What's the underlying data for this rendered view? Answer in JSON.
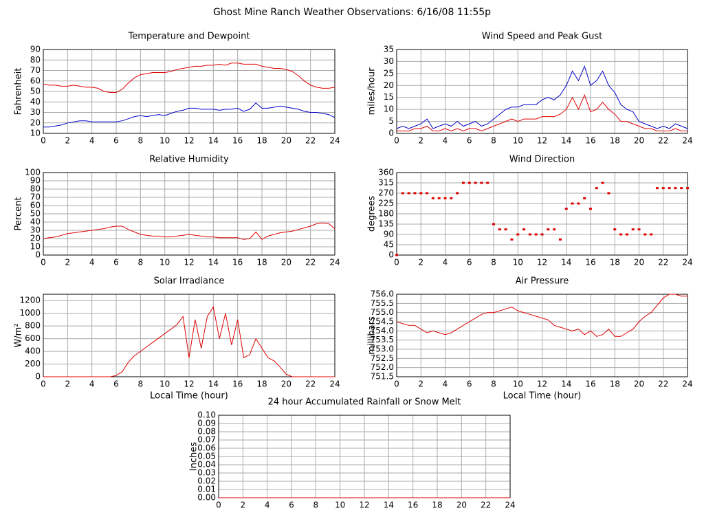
{
  "title": "Ghost Mine Ranch Weather Observations: 6/16/08 11:55p",
  "chart_data": [
    {
      "type": "line",
      "title": "Temperature and Dewpoint",
      "ylabel": "Fahrenheit",
      "grid": true,
      "xlim": [
        0,
        24
      ],
      "xticks": [
        0,
        2,
        4,
        6,
        8,
        10,
        12,
        14,
        16,
        18,
        20,
        22,
        24
      ],
      "ylim": [
        10,
        90
      ],
      "yticks": [
        10,
        20,
        30,
        40,
        50,
        60,
        70,
        80,
        90
      ],
      "x": [
        0,
        0.5,
        1,
        1.5,
        2,
        2.5,
        3,
        3.5,
        4,
        4.5,
        5,
        5.5,
        6,
        6.5,
        7,
        7.5,
        8,
        8.5,
        9,
        9.5,
        10,
        10.5,
        11,
        11.5,
        12,
        12.5,
        13,
        13.5,
        14,
        14.5,
        15,
        15.5,
        16,
        16.5,
        17,
        17.5,
        18,
        18.5,
        19,
        19.5,
        20,
        20.5,
        21,
        21.5,
        22,
        22.5,
        23,
        23.5,
        24
      ],
      "series": [
        {
          "color": "#e00000",
          "values": [
            57,
            56,
            56,
            55,
            55,
            56,
            55,
            54,
            54,
            53,
            50,
            49,
            49,
            52,
            58,
            63,
            66,
            67,
            68,
            68,
            68,
            69,
            71,
            72,
            73,
            74,
            74,
            75,
            75,
            76,
            75,
            77,
            77,
            76,
            76,
            76,
            74,
            73,
            72,
            72,
            71,
            69,
            65,
            60,
            56,
            54,
            53,
            53,
            54
          ]
        },
        {
          "color": "#0000cc",
          "values": [
            16,
            16,
            17,
            18,
            20,
            21,
            22,
            22,
            21,
            21,
            21,
            21,
            21,
            22,
            24,
            26,
            27,
            26,
            27,
            28,
            27,
            29,
            31,
            32,
            34,
            34,
            33,
            33,
            33,
            32,
            33,
            33,
            34,
            31,
            33,
            39,
            34,
            34,
            35,
            36,
            35,
            34,
            33,
            31,
            30,
            30,
            29,
            28,
            25
          ]
        }
      ]
    },
    {
      "type": "line",
      "title": "Wind Speed and Peak Gust",
      "ylabel": "miles/hour",
      "grid": true,
      "xlim": [
        0,
        24
      ],
      "xticks": [
        0,
        2,
        4,
        6,
        8,
        10,
        12,
        14,
        16,
        18,
        20,
        22,
        24
      ],
      "ylim": [
        0,
        35
      ],
      "yticks": [
        0,
        5,
        10,
        15,
        20,
        25,
        30,
        35
      ],
      "x": [
        0,
        0.5,
        1,
        1.5,
        2,
        2.5,
        3,
        3.5,
        4,
        4.5,
        5,
        5.5,
        6,
        6.5,
        7,
        7.5,
        8,
        8.5,
        9,
        9.5,
        10,
        10.5,
        11,
        11.5,
        12,
        12.5,
        13,
        13.5,
        14,
        14.5,
        15,
        15.5,
        16,
        16.5,
        17,
        17.5,
        18,
        18.5,
        19,
        19.5,
        20,
        20.5,
        21,
        21.5,
        22,
        22.5,
        23,
        23.5,
        24
      ],
      "series": [
        {
          "color": "#0000cc",
          "values": [
            2,
            3,
            2,
            3,
            4,
            6,
            2,
            3,
            4,
            3,
            5,
            3,
            4,
            5,
            3,
            4,
            6,
            8,
            10,
            11,
            11,
            12,
            12,
            12,
            14,
            15,
            14,
            16,
            20,
            26,
            22,
            28,
            20,
            22,
            26,
            20,
            17,
            12,
            10,
            9,
            5,
            4,
            3,
            2,
            3,
            2,
            4,
            3,
            2
          ]
        },
        {
          "color": "#e00000",
          "values": [
            1,
            1,
            1,
            2,
            2,
            3,
            1,
            1,
            2,
            1,
            2,
            1,
            2,
            2,
            1,
            2,
            3,
            4,
            5,
            6,
            5,
            6,
            6,
            6,
            7,
            7,
            7,
            8,
            10,
            15,
            10,
            16,
            9,
            10,
            13,
            10,
            8,
            5,
            5,
            4,
            3,
            2,
            2,
            1,
            1,
            1,
            2,
            1,
            1
          ]
        }
      ]
    },
    {
      "type": "line",
      "title": "Relative Humidity",
      "ylabel": "Percent",
      "grid": true,
      "xlim": [
        0,
        24
      ],
      "xticks": [
        0,
        2,
        4,
        6,
        8,
        10,
        12,
        14,
        16,
        18,
        20,
        22,
        24
      ],
      "ylim": [
        0,
        100
      ],
      "yticks": [
        0,
        10,
        20,
        30,
        40,
        50,
        60,
        70,
        80,
        90,
        100
      ],
      "x": [
        0,
        0.5,
        1,
        1.5,
        2,
        2.5,
        3,
        3.5,
        4,
        4.5,
        5,
        5.5,
        6,
        6.5,
        7,
        7.5,
        8,
        8.5,
        9,
        9.5,
        10,
        10.5,
        11,
        11.5,
        12,
        12.5,
        13,
        13.5,
        14,
        14.5,
        15,
        15.5,
        16,
        16.5,
        17,
        17.5,
        18,
        18.5,
        19,
        19.5,
        20,
        20.5,
        21,
        21.5,
        22,
        22.5,
        23,
        23.5,
        24
      ],
      "series": [
        {
          "color": "#e00000",
          "values": [
            20,
            21,
            22,
            24,
            26,
            27,
            28,
            29,
            30,
            31,
            32,
            34,
            35,
            35,
            31,
            28,
            25,
            24,
            23,
            23,
            22,
            22,
            23,
            24,
            25,
            24,
            23,
            22,
            22,
            21,
            21,
            21,
            21,
            19,
            20,
            28,
            19,
            23,
            25,
            27,
            28,
            29,
            31,
            33,
            35,
            38,
            39,
            38,
            32
          ]
        }
      ]
    },
    {
      "type": "scatter",
      "title": "Wind Direction",
      "ylabel": "degrees",
      "grid": true,
      "xlim": [
        0,
        24
      ],
      "xticks": [
        0,
        2,
        4,
        6,
        8,
        10,
        12,
        14,
        16,
        18,
        20,
        22,
        24
      ],
      "ylim": [
        0,
        360
      ],
      "yticks": [
        0,
        45,
        90,
        135,
        180,
        225,
        270,
        315,
        360
      ],
      "x": [
        0,
        0.5,
        1,
        1.5,
        2,
        2.5,
        3,
        3.5,
        4,
        4.5,
        5,
        5.5,
        6,
        6.5,
        7,
        7.5,
        8,
        8.5,
        9,
        9.5,
        10,
        10.5,
        11,
        11.5,
        12,
        12.5,
        13,
        13.5,
        14,
        14.5,
        15,
        15.5,
        16,
        16.5,
        17,
        17.5,
        18,
        18.5,
        19,
        19.5,
        20,
        20.5,
        21,
        21.5,
        22,
        22.5,
        23,
        23.5,
        24
      ],
      "series": [
        {
          "color": "#e00000",
          "values": [
            0,
            270,
            270,
            270,
            270,
            270,
            248,
            248,
            248,
            248,
            270,
            315,
            315,
            315,
            315,
            315,
            135,
            112,
            112,
            68,
            90,
            112,
            90,
            90,
            90,
            112,
            112,
            68,
            202,
            225,
            225,
            248,
            202,
            292,
            315,
            270,
            112,
            90,
            90,
            112,
            112,
            90,
            90,
            292,
            292,
            292,
            292,
            292,
            292
          ]
        }
      ]
    },
    {
      "type": "line",
      "title": "Solar Irradiance",
      "ylabel": "W/m²",
      "xlabel": "Local Time (hour)",
      "grid": true,
      "xlim": [
        0,
        24
      ],
      "xticks": [
        0,
        2,
        4,
        6,
        8,
        10,
        12,
        14,
        16,
        18,
        20,
        22,
        24
      ],
      "ylim": [
        0,
        1300
      ],
      "yticks": [
        0,
        200,
        400,
        600,
        800,
        1000,
        1200
      ],
      "x": [
        0,
        0.5,
        1,
        1.5,
        2,
        2.5,
        3,
        3.5,
        4,
        4.5,
        5,
        5.5,
        6,
        6.5,
        7,
        7.5,
        8,
        8.5,
        9,
        9.5,
        10,
        10.5,
        11,
        11.5,
        12,
        12.5,
        13,
        13.5,
        14,
        14.5,
        15,
        15.5,
        16,
        16.5,
        17,
        17.5,
        18,
        18.5,
        19,
        19.5,
        20,
        20.5,
        21,
        21.5,
        22,
        22.5,
        23,
        23.5,
        24
      ],
      "series": [
        {
          "color": "#e00000",
          "values": [
            0,
            0,
            0,
            0,
            0,
            0,
            0,
            0,
            0,
            0,
            0,
            0,
            20,
            80,
            230,
            330,
            400,
            470,
            540,
            610,
            680,
            750,
            820,
            950,
            300,
            900,
            450,
            950,
            1100,
            600,
            1000,
            500,
            900,
            300,
            350,
            600,
            450,
            300,
            250,
            150,
            40,
            0,
            0,
            0,
            0,
            0,
            0,
            0,
            0
          ]
        }
      ]
    },
    {
      "type": "line",
      "title": "Air Pressure",
      "ylabel": "millibars",
      "xlabel": "Local Time (hour)",
      "grid": true,
      "xlim": [
        0,
        24
      ],
      "xticks": [
        0,
        2,
        4,
        6,
        8,
        10,
        12,
        14,
        16,
        18,
        20,
        22,
        24
      ],
      "ylim": [
        751.5,
        756
      ],
      "yticks": [
        751.5,
        {
          "value": 752,
          "label": "752.0"
        },
        752.5,
        {
          "value": 753,
          "label": "753.0"
        },
        753.5,
        {
          "value": 754,
          "label": "754.0"
        },
        754.5,
        {
          "value": 755,
          "label": "755.0"
        },
        755.5,
        {
          "value": 756,
          "label": "756.0"
        }
      ],
      "x": [
        0,
        0.5,
        1,
        1.5,
        2,
        2.5,
        3,
        3.5,
        4,
        4.5,
        5,
        5.5,
        6,
        6.5,
        7,
        7.5,
        8,
        8.5,
        9,
        9.5,
        10,
        10.5,
        11,
        11.5,
        12,
        12.5,
        13,
        13.5,
        14,
        14.5,
        15,
        15.5,
        16,
        16.5,
        17,
        17.5,
        18,
        18.5,
        19,
        19.5,
        20,
        20.5,
        21,
        21.5,
        22,
        22.5,
        23,
        23.5,
        24
      ],
      "series": [
        {
          "color": "#e00000",
          "values": [
            754.5,
            754.4,
            754.3,
            754.3,
            754.1,
            753.9,
            754.0,
            753.9,
            753.8,
            753.9,
            754.1,
            754.3,
            754.5,
            754.7,
            754.9,
            755.0,
            755.0,
            755.1,
            755.2,
            755.3,
            755.1,
            755.0,
            754.9,
            754.8,
            754.7,
            754.6,
            754.3,
            754.2,
            754.1,
            754.0,
            754.1,
            753.8,
            754.0,
            753.7,
            753.8,
            754.1,
            753.7,
            753.7,
            753.9,
            754.1,
            754.5,
            754.8,
            755.0,
            755.4,
            755.8,
            756.0,
            756.0,
            755.9,
            755.9
          ]
        }
      ]
    },
    {
      "type": "line",
      "title": "24 hour Accumulated Rainfall or Snow Melt",
      "ylabel": "Inches",
      "grid": true,
      "xlim": [
        0,
        24
      ],
      "xticks": [
        0,
        2,
        4,
        6,
        8,
        10,
        12,
        14,
        16,
        18,
        20,
        22,
        24
      ],
      "ylim": [
        0,
        0.1
      ],
      "yticks": [
        {
          "value": 0,
          "label": "0.00"
        },
        {
          "value": 0.01,
          "label": "0.01"
        },
        {
          "value": 0.02,
          "label": "0.02"
        },
        {
          "value": 0.03,
          "label": "0.03"
        },
        {
          "value": 0.04,
          "label": "0.04"
        },
        {
          "value": 0.05,
          "label": "0.05"
        },
        {
          "value": 0.06,
          "label": "0.06"
        },
        {
          "value": 0.07,
          "label": "0.07"
        },
        {
          "value": 0.08,
          "label": "0.08"
        },
        {
          "value": 0.09,
          "label": "0.09"
        },
        {
          "value": 0.1,
          "label": "0.10"
        }
      ],
      "x": [
        0,
        24
      ],
      "series": [
        {
          "color": "#e00000",
          "values": [
            0,
            0
          ]
        }
      ]
    }
  ]
}
